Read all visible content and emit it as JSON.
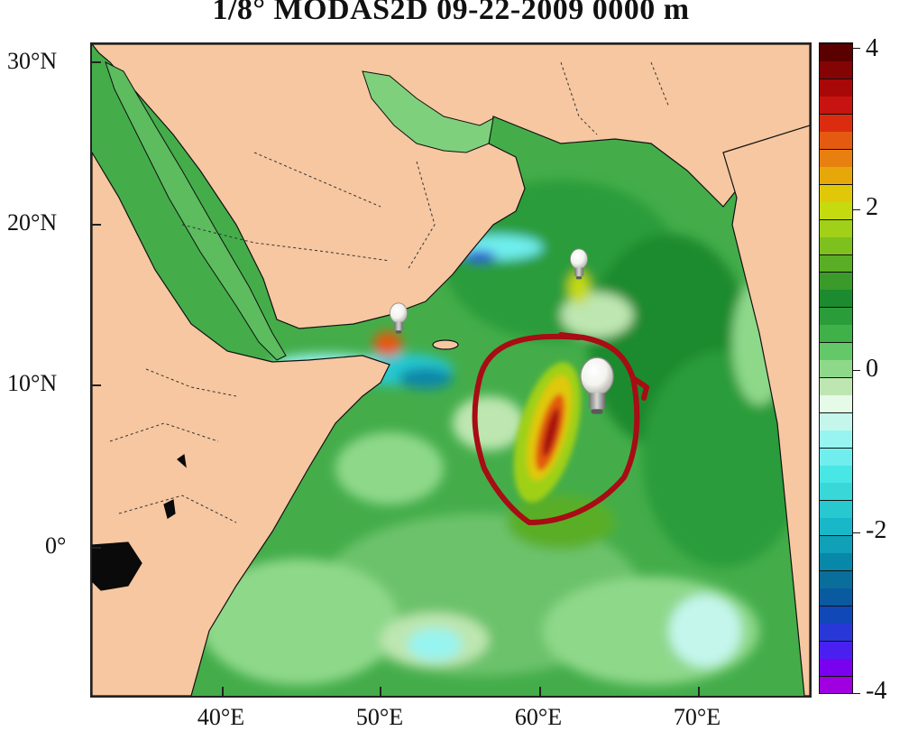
{
  "title": "1/8° MODAS2D 09-22-2009 0000 m",
  "axes": {
    "lat_labels": [
      "30°N",
      "20°N",
      "10°N",
      "0°"
    ],
    "lon_labels": [
      "40°E",
      "50°E",
      "60°E",
      "70°E"
    ]
  },
  "colorbar": {
    "ticks": [
      "4",
      "2",
      "0",
      "-2",
      "-4"
    ],
    "range": [
      -4,
      4
    ],
    "colors": [
      "#a000e0",
      "#7a00f0",
      "#4a20f0",
      "#2838d8",
      "#1048b8",
      "#0a5aa0",
      "#0a6e9a",
      "#0888a8",
      "#10a0b8",
      "#18b8c8",
      "#28c8d0",
      "#38d8d8",
      "#48e6e4",
      "#70eeee",
      "#98f4f0",
      "#c4f6ec",
      "#e6fae8",
      "#bde6b0",
      "#8ed88a",
      "#64c868",
      "#40b048",
      "#2a9c3a",
      "#1c8a2e",
      "#3a9a2a",
      "#5aae26",
      "#7ec01e",
      "#a0d018",
      "#c6da10",
      "#e0c808",
      "#e6a808",
      "#e88010",
      "#e45a10",
      "#dc2c10",
      "#c81410",
      "#a80808",
      "#840404",
      "#5a0000"
    ]
  },
  "map": {
    "land_color": "#f6c7a0",
    "annotation_color": "#a80c14",
    "markers": [
      "bulb-icon-gulf-of-aden",
      "bulb-icon-arabian-sea-north",
      "bulb-icon-eddy-center"
    ]
  }
}
